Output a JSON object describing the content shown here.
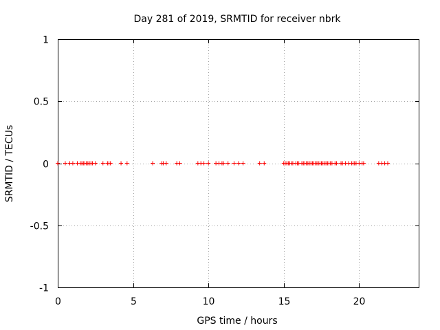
{
  "chart_data": {
    "type": "scatter",
    "title": "Day 281 of 2019, SRMTID for receiver nbrk",
    "xlabel": "GPS time / hours",
    "ylabel": "SRMTID / TECUs",
    "xlim": [
      0,
      24
    ],
    "ylim": [
      -1,
      1
    ],
    "xticks": [
      0,
      5,
      10,
      15,
      20
    ],
    "xtick_labels": [
      "0",
      "5",
      "10",
      "15",
      "20"
    ],
    "yticks": [
      -1,
      -0.5,
      0,
      0.5,
      1
    ],
    "ytick_labels": [
      "-1",
      "-0.5",
      "0",
      "0.5",
      "1"
    ],
    "grid": true,
    "marker": "+",
    "color": "#ff0000",
    "series": [
      {
        "name": "SRMTID",
        "x": [
          0.0,
          0.5,
          0.8,
          1.0,
          1.3,
          1.5,
          1.6,
          1.7,
          1.8,
          1.9,
          2.0,
          2.1,
          2.2,
          2.3,
          2.5,
          3.0,
          3.3,
          3.4,
          3.5,
          4.2,
          4.6,
          6.3,
          6.9,
          7.0,
          7.2,
          7.9,
          8.1,
          9.3,
          9.5,
          9.7,
          10.0,
          10.5,
          10.7,
          10.9,
          11.0,
          11.3,
          11.7,
          12.0,
          12.3,
          13.4,
          13.7,
          15.0,
          15.1,
          15.2,
          15.3,
          15.4,
          15.5,
          15.6,
          15.8,
          15.9,
          16.0,
          16.2,
          16.3,
          16.4,
          16.5,
          16.6,
          16.7,
          16.8,
          16.9,
          17.0,
          17.1,
          17.2,
          17.3,
          17.4,
          17.5,
          17.6,
          17.7,
          17.8,
          17.9,
          18.0,
          18.1,
          18.2,
          18.4,
          18.5,
          18.8,
          18.9,
          19.1,
          19.3,
          19.5,
          19.6,
          19.7,
          19.8,
          20.0,
          20.2,
          20.3,
          21.3,
          21.5,
          21.7,
          21.9
        ],
        "y": [
          0,
          0,
          0,
          0,
          0,
          0,
          0,
          0,
          0,
          0,
          0,
          0,
          0,
          0,
          0,
          0,
          0,
          0,
          0,
          0,
          0,
          0,
          0,
          0,
          0,
          0,
          0,
          0,
          0,
          0,
          0,
          0,
          0,
          0,
          0,
          0,
          0,
          0,
          0,
          0,
          0,
          0,
          0,
          0,
          0,
          0,
          0,
          0,
          0,
          0,
          0,
          0,
          0,
          0,
          0,
          0,
          0,
          0,
          0,
          0,
          0,
          0,
          0,
          0,
          0,
          0,
          0,
          0,
          0,
          0,
          0,
          0,
          0,
          0,
          0,
          0,
          0,
          0,
          0,
          0,
          0,
          0,
          0,
          0,
          0,
          0,
          0,
          0,
          0
        ]
      }
    ]
  }
}
